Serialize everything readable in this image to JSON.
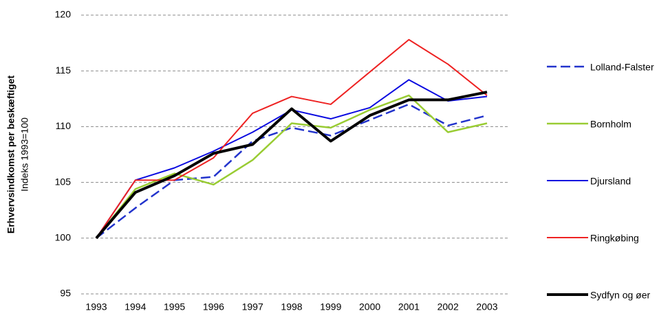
{
  "chart_data": {
    "type": "line",
    "y_label": "Erhvervsindkomst per beskæftiget",
    "y_sublabel": "Indeks 1993=100",
    "categories": [
      "1993",
      "1994",
      "1995",
      "1996",
      "1997",
      "1998",
      "1999",
      "2000",
      "2001",
      "2002",
      "2003"
    ],
    "ylim": [
      95,
      120
    ],
    "yticks": [
      95,
      100,
      105,
      110,
      115,
      120
    ],
    "grid": true,
    "legend": "right",
    "series": [
      {
        "name": "Lolland-Falster",
        "color": "#2233cc",
        "dashed": true,
        "line_width": 2.5,
        "values": [
          100,
          102.7,
          105.2,
          105.5,
          108.7,
          109.9,
          109.2,
          110.6,
          112.0,
          110.1,
          111.0
        ]
      },
      {
        "name": "Bornholm",
        "color": "#99cc33",
        "dashed": false,
        "line_width": 2.5,
        "values": [
          100,
          104.4,
          105.8,
          104.8,
          107.0,
          110.3,
          109.9,
          111.5,
          112.8,
          109.5,
          110.3
        ]
      },
      {
        "name": "Djursland",
        "color": "#0a0ae0",
        "dashed": false,
        "line_width": 2,
        "values": [
          100,
          105.2,
          106.3,
          107.8,
          109.5,
          111.5,
          110.7,
          111.7,
          114.2,
          112.3,
          112.7
        ]
      },
      {
        "name": "Ringkøbing",
        "color": "#ee2222",
        "dashed": false,
        "line_width": 2,
        "values": [
          100,
          105.2,
          105.2,
          107.2,
          111.2,
          112.7,
          112.0,
          114.9,
          117.8,
          115.6,
          112.8
        ]
      },
      {
        "name": "Sydfyn og øer",
        "color": "#000000",
        "dashed": false,
        "line_width": 4,
        "values": [
          100,
          104.1,
          105.6,
          107.6,
          108.4,
          111.6,
          108.7,
          111.0,
          112.4,
          112.4,
          113.1
        ]
      }
    ]
  }
}
